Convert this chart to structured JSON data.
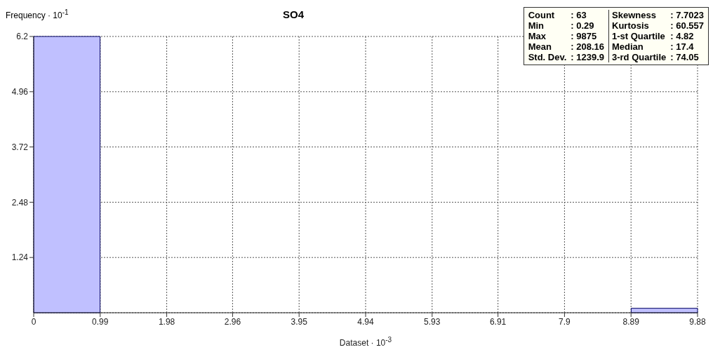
{
  "chart_data": {
    "type": "histogram",
    "title": "SO4",
    "xlabel": "Dataset · 10$^{-3}$",
    "ylabel": "Frequency · 10$^{-1}$",
    "bins": [
      0,
      0.988,
      1.976,
      2.964,
      3.952,
      4.94,
      5.928,
      6.916,
      7.904,
      8.892,
      9.88
    ],
    "values": [
      6.2,
      0,
      0,
      0,
      0,
      0,
      0,
      0,
      0,
      0.1
    ],
    "color": "#c0c0ff",
    "xlim": [
      0,
      9.88
    ],
    "xticks": [
      0,
      0.99,
      1.98,
      2.96,
      3.95,
      4.94,
      5.93,
      6.91,
      7.9,
      8.89,
      9.88
    ],
    "ylim": [
      0,
      6.2
    ],
    "yticks": [
      1.24,
      2.48,
      3.72,
      4.96,
      6.2
    ],
    "grid": true,
    "annotations": [
      "Count",
      ": 63",
      "Skewness",
      ": 7.7023",
      "Min",
      ": 0.29",
      "Kurtosis",
      ": 60.557",
      "Max",
      ": 9875",
      "1-st Quartile",
      ": 4.82",
      "Mean",
      ": 208.16",
      "Median",
      ": 17.4",
      "Std. Dev.",
      ": 1239.9",
      "3-rd Quartile",
      ": 74.05"
    ]
  }
}
